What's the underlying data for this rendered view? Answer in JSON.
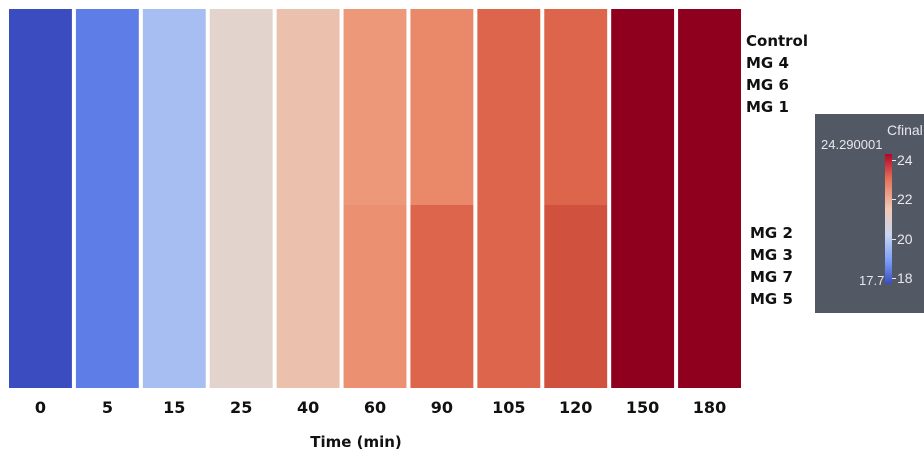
{
  "chart_data": {
    "type": "heatmap",
    "xlabel": "Time (min)",
    "x": [
      "0",
      "5",
      "15",
      "25",
      "40",
      "60",
      "90",
      "105",
      "120",
      "150",
      "180"
    ],
    "groups": [
      {
        "labels": [
          "Control",
          "MG 4",
          "MG 6",
          "MG 1"
        ]
      },
      {
        "labels": [
          "MG 2",
          "MG 3",
          "MG 7",
          "MG 5"
        ]
      }
    ],
    "values": [
      [
        17.7,
        18.6,
        20.1,
        21.2,
        21.6,
        22.3,
        22.5,
        23.0,
        23.0,
        24.29,
        24.29
      ],
      [
        17.7,
        18.6,
        20.1,
        21.2,
        21.6,
        22.4,
        23.0,
        23.0,
        23.3,
        24.29,
        24.29
      ]
    ],
    "colorbar": {
      "title": "Cfinal",
      "min": 17.7,
      "max": 24.290001,
      "min_label": "17.7",
      "max_label": "24.290001",
      "ticks": [
        "24",
        "22",
        "20",
        "18"
      ],
      "colormap": "coolwarm"
    }
  }
}
